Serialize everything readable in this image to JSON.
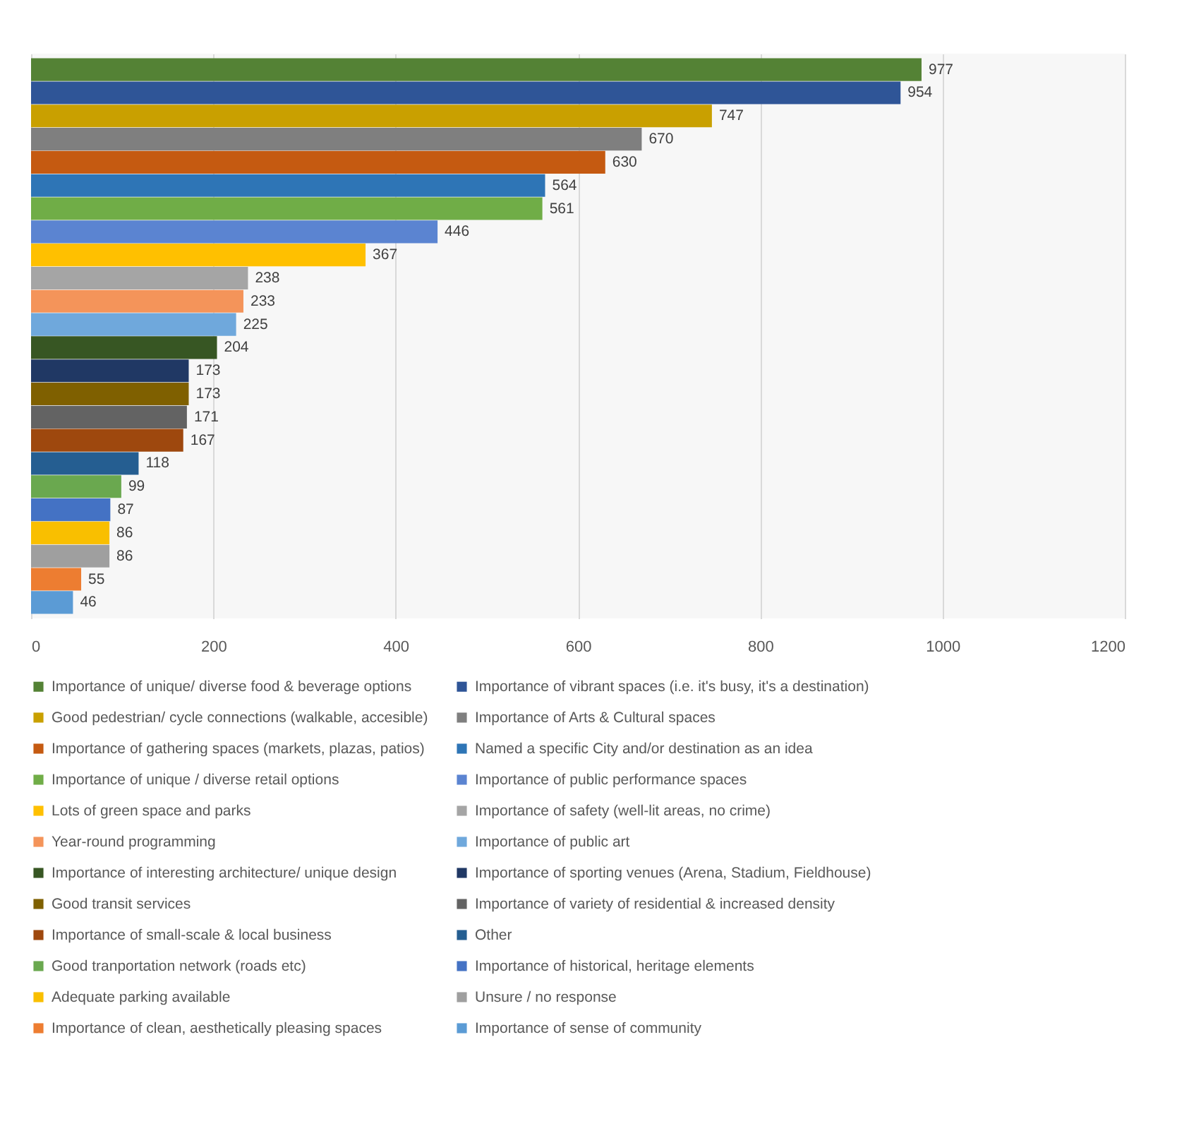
{
  "chart_data": {
    "type": "bar",
    "orientation": "horizontal",
    "categories": [
      null,
      null,
      null,
      null,
      null,
      null,
      null,
      null,
      null,
      null,
      null,
      null,
      null,
      null,
      null,
      null,
      null,
      null,
      null,
      null,
      null,
      null,
      null,
      null
    ],
    "series": [
      {
        "name": "Importance of unique/ diverse food & beverage options",
        "color": "#548235",
        "values": [
          977,
          null,
          null,
          null,
          null,
          null,
          null,
          null,
          null,
          null,
          null,
          null,
          null,
          null,
          null,
          null,
          null,
          null,
          null,
          null,
          null,
          null,
          null,
          null
        ]
      },
      {
        "name": "Importance of vibrant spaces (i.e.  it's busy, it's a destination)",
        "color": "#2f5597",
        "values": [
          null,
          954,
          null,
          null,
          null,
          null,
          null,
          null,
          null,
          null,
          null,
          null,
          null,
          null,
          null,
          null,
          null,
          null,
          null,
          null,
          null,
          null,
          null,
          null
        ]
      },
      {
        "name": "Good pedestrian/ cycle connections (walkable, accesible)",
        "color": "#c9a000",
        "values": [
          null,
          null,
          747,
          null,
          null,
          null,
          null,
          null,
          null,
          null,
          null,
          null,
          null,
          null,
          null,
          null,
          null,
          null,
          null,
          null,
          null,
          null,
          null,
          null
        ]
      },
      {
        "name": "Importance of Arts & Cultural spaces",
        "color": "#7f7f7f",
        "values": [
          null,
          null,
          null,
          670,
          null,
          null,
          null,
          null,
          null,
          null,
          null,
          null,
          null,
          null,
          null,
          null,
          null,
          null,
          null,
          null,
          null,
          null,
          null,
          null
        ]
      },
      {
        "name": "Importance of gathering spaces (markets, plazas, patios)",
        "color": "#c55a11",
        "values": [
          null,
          null,
          null,
          null,
          630,
          null,
          null,
          null,
          null,
          null,
          null,
          null,
          null,
          null,
          null,
          null,
          null,
          null,
          null,
          null,
          null,
          null,
          null,
          null
        ]
      },
      {
        "name": "Named a specific City and/or destination as an idea",
        "color": "#2e75b6",
        "values": [
          null,
          null,
          null,
          null,
          null,
          564,
          null,
          null,
          null,
          null,
          null,
          null,
          null,
          null,
          null,
          null,
          null,
          null,
          null,
          null,
          null,
          null,
          null,
          null
        ]
      },
      {
        "name": "Importance of unique / diverse retail options",
        "color": "#70ad47",
        "values": [
          null,
          null,
          null,
          null,
          null,
          null,
          561,
          null,
          null,
          null,
          null,
          null,
          null,
          null,
          null,
          null,
          null,
          null,
          null,
          null,
          null,
          null,
          null,
          null
        ]
      },
      {
        "name": "Importance of public performance spaces",
        "color": "#5b84d1",
        "values": [
          null,
          null,
          null,
          null,
          null,
          null,
          null,
          446,
          null,
          null,
          null,
          null,
          null,
          null,
          null,
          null,
          null,
          null,
          null,
          null,
          null,
          null,
          null,
          null
        ]
      },
      {
        "name": "Lots of green space and parks",
        "color": "#ffc000",
        "values": [
          null,
          null,
          null,
          null,
          null,
          null,
          null,
          null,
          367,
          null,
          null,
          null,
          null,
          null,
          null,
          null,
          null,
          null,
          null,
          null,
          null,
          null,
          null,
          null
        ]
      },
      {
        "name": "Importance of safety (well-lit areas, no crime)",
        "color": "#a5a5a5",
        "values": [
          null,
          null,
          null,
          null,
          null,
          null,
          null,
          null,
          null,
          238,
          null,
          null,
          null,
          null,
          null,
          null,
          null,
          null,
          null,
          null,
          null,
          null,
          null,
          null
        ]
      },
      {
        "name": "Year-round programming",
        "color": "#f4945a",
        "values": [
          null,
          null,
          null,
          null,
          null,
          null,
          null,
          null,
          null,
          null,
          233,
          null,
          null,
          null,
          null,
          null,
          null,
          null,
          null,
          null,
          null,
          null,
          null,
          null
        ]
      },
      {
        "name": "Importance of public art",
        "color": "#6fa8dc",
        "values": [
          null,
          null,
          null,
          null,
          null,
          null,
          null,
          null,
          null,
          null,
          null,
          225,
          null,
          null,
          null,
          null,
          null,
          null,
          null,
          null,
          null,
          null,
          null,
          null
        ]
      },
      {
        "name": "Importance of interesting architecture/ unique design",
        "color": "#375623",
        "values": [
          null,
          null,
          null,
          null,
          null,
          null,
          null,
          null,
          null,
          null,
          null,
          null,
          204,
          null,
          null,
          null,
          null,
          null,
          null,
          null,
          null,
          null,
          null,
          null
        ]
      },
      {
        "name": "Importance of sporting venues (Arena, Stadium, Fieldhouse)",
        "color": "#203864",
        "values": [
          null,
          null,
          null,
          null,
          null,
          null,
          null,
          null,
          null,
          null,
          null,
          null,
          null,
          173,
          null,
          null,
          null,
          null,
          null,
          null,
          null,
          null,
          null,
          null
        ]
      },
      {
        "name": "Good transit services",
        "color": "#7f6000",
        "values": [
          null,
          null,
          null,
          null,
          null,
          null,
          null,
          null,
          null,
          null,
          null,
          null,
          null,
          null,
          173,
          null,
          null,
          null,
          null,
          null,
          null,
          null,
          null,
          null
        ]
      },
      {
        "name": "Importance of variety of residential &  increased density",
        "color": "#636363",
        "values": [
          null,
          null,
          null,
          null,
          null,
          null,
          null,
          null,
          null,
          null,
          null,
          null,
          null,
          null,
          null,
          171,
          null,
          null,
          null,
          null,
          null,
          null,
          null,
          null
        ]
      },
      {
        "name": " Importance of small-scale & local business",
        "color": "#9e480e",
        "values": [
          null,
          null,
          null,
          null,
          null,
          null,
          null,
          null,
          null,
          null,
          null,
          null,
          null,
          null,
          null,
          null,
          167,
          null,
          null,
          null,
          null,
          null,
          null,
          null
        ]
      },
      {
        "name": "Other",
        "color": "#255e91",
        "values": [
          null,
          null,
          null,
          null,
          null,
          null,
          null,
          null,
          null,
          null,
          null,
          null,
          null,
          null,
          null,
          null,
          null,
          118,
          null,
          null,
          null,
          null,
          null,
          null
        ]
      },
      {
        "name": "Good tranportation network (roads etc)",
        "color": "#6aa84f",
        "values": [
          null,
          null,
          null,
          null,
          null,
          null,
          null,
          null,
          null,
          null,
          null,
          null,
          null,
          null,
          null,
          null,
          null,
          null,
          99,
          null,
          null,
          null,
          null,
          null
        ]
      },
      {
        "name": "Importance of historical, heritage elements",
        "color": "#4472c4",
        "values": [
          null,
          null,
          null,
          null,
          null,
          null,
          null,
          null,
          null,
          null,
          null,
          null,
          null,
          null,
          null,
          null,
          null,
          null,
          null,
          87,
          null,
          null,
          null,
          null
        ]
      },
      {
        "name": "Adequate parking available",
        "color": "#f9bf00",
        "values": [
          null,
          null,
          null,
          null,
          null,
          null,
          null,
          null,
          null,
          null,
          null,
          null,
          null,
          null,
          null,
          null,
          null,
          null,
          null,
          null,
          86,
          null,
          null,
          null
        ]
      },
      {
        "name": "Unsure / no response",
        "color": "#9f9f9f",
        "values": [
          null,
          null,
          null,
          null,
          null,
          null,
          null,
          null,
          null,
          null,
          null,
          null,
          null,
          null,
          null,
          null,
          null,
          null,
          null,
          null,
          null,
          86,
          null,
          null
        ]
      },
      {
        "name": "Importance of clean, aesthetically pleasing spaces",
        "color": "#ed7d31",
        "values": [
          null,
          null,
          null,
          null,
          null,
          null,
          null,
          null,
          null,
          null,
          null,
          null,
          null,
          null,
          null,
          null,
          null,
          null,
          null,
          null,
          null,
          null,
          55,
          null
        ]
      },
      {
        "name": "Importance  of sense of community",
        "color": "#5b9bd5",
        "values": [
          null,
          null,
          null,
          null,
          null,
          null,
          null,
          null,
          null,
          null,
          null,
          null,
          null,
          null,
          null,
          null,
          null,
          null,
          null,
          null,
          null,
          null,
          null,
          46
        ]
      }
    ],
    "xlim": [
      0,
      1200
    ],
    "xticks": [
      0,
      200,
      400,
      600,
      800,
      1000,
      1200
    ],
    "grid": "x",
    "legend": "bottom",
    "data_labels": true,
    "tick_labels": "x"
  }
}
